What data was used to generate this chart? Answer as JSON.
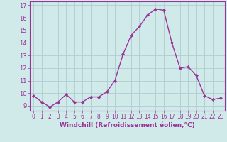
{
  "x": [
    0,
    1,
    2,
    3,
    4,
    5,
    6,
    7,
    8,
    9,
    10,
    11,
    12,
    13,
    14,
    15,
    16,
    17,
    18,
    19,
    20,
    21,
    22,
    23
  ],
  "y": [
    9.8,
    9.3,
    8.9,
    9.3,
    9.9,
    9.3,
    9.3,
    9.7,
    9.7,
    10.1,
    11.0,
    13.1,
    14.6,
    15.3,
    16.2,
    16.7,
    16.6,
    14.0,
    12.0,
    12.1,
    11.4,
    9.8,
    9.5,
    9.6
  ],
  "line_color": "#993399",
  "marker": "D",
  "marker_size": 2.0,
  "linewidth": 1.0,
  "xlabel": "Windchill (Refroidissement éolien,°C)",
  "xlabel_fontsize": 6.5,
  "ytick_values": [
    9,
    10,
    11,
    12,
    13,
    14,
    15,
    16,
    17
  ],
  "ytick_labels": [
    "9",
    "10",
    "11",
    "12",
    "13",
    "14",
    "15",
    "16",
    "17"
  ],
  "ylim": [
    8.6,
    17.3
  ],
  "xlim": [
    -0.5,
    23.5
  ],
  "xtick_labels": [
    "0",
    "1",
    "2",
    "3",
    "4",
    "5",
    "6",
    "7",
    "8",
    "9",
    "10",
    "11",
    "12",
    "13",
    "14",
    "15",
    "16",
    "17",
    "18",
    "19",
    "20",
    "21",
    "22",
    "23"
  ],
  "grid_color": "#b0ccd0",
  "background_color": "#d0eaea",
  "spine_color": "#993399",
  "tick_fontsize": 5.5,
  "ytick_fontsize": 6.0
}
